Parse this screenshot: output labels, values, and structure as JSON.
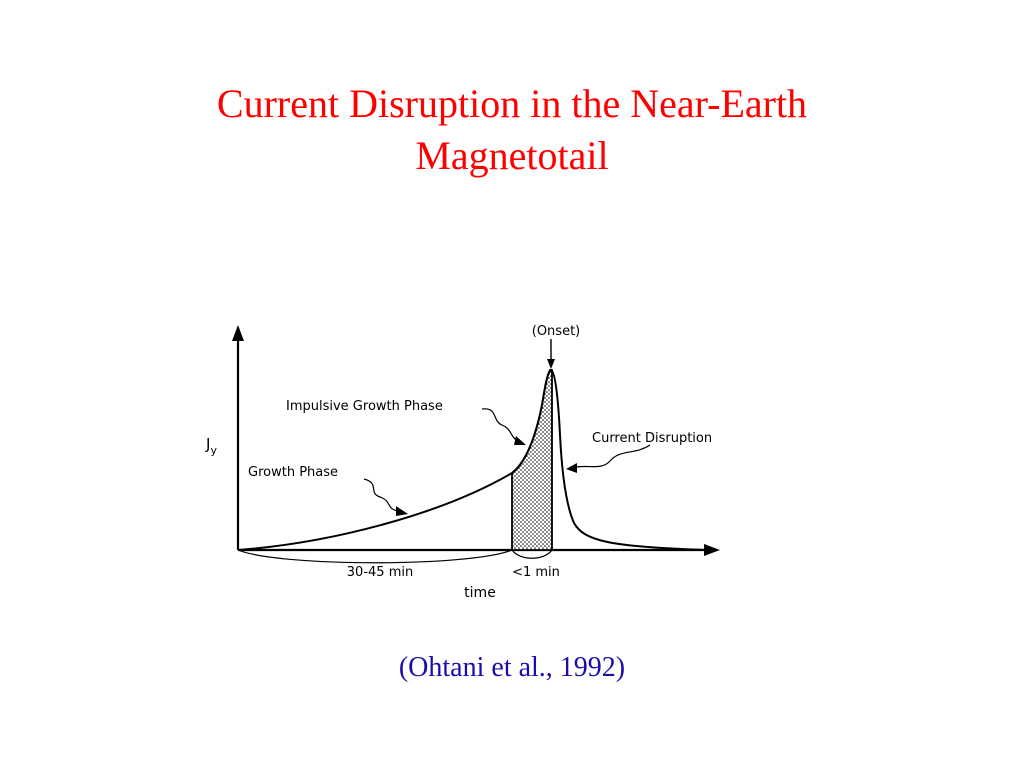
{
  "slide": {
    "title_line1": "Current Disruption in the Near-Earth",
    "title_line2": "Magnetotail",
    "citation": "(Ohtani et al., 1992)"
  },
  "colors": {
    "title": "#ff0000",
    "citation": "#1a0dab",
    "ink": "#000000",
    "shade": "#d9d9d9"
  },
  "figure": {
    "y_axis_label": "J",
    "y_axis_subscript": "y",
    "x_axis_label": "time",
    "onset_label": "(Onset)",
    "impulsive_label": "Impulsive Growth Phase",
    "growth_label": "Growth Phase",
    "disruption_label": "Current Disruption",
    "interval_growth_label": "30-45 min",
    "interval_impulsive_label": "<1 min"
  }
}
